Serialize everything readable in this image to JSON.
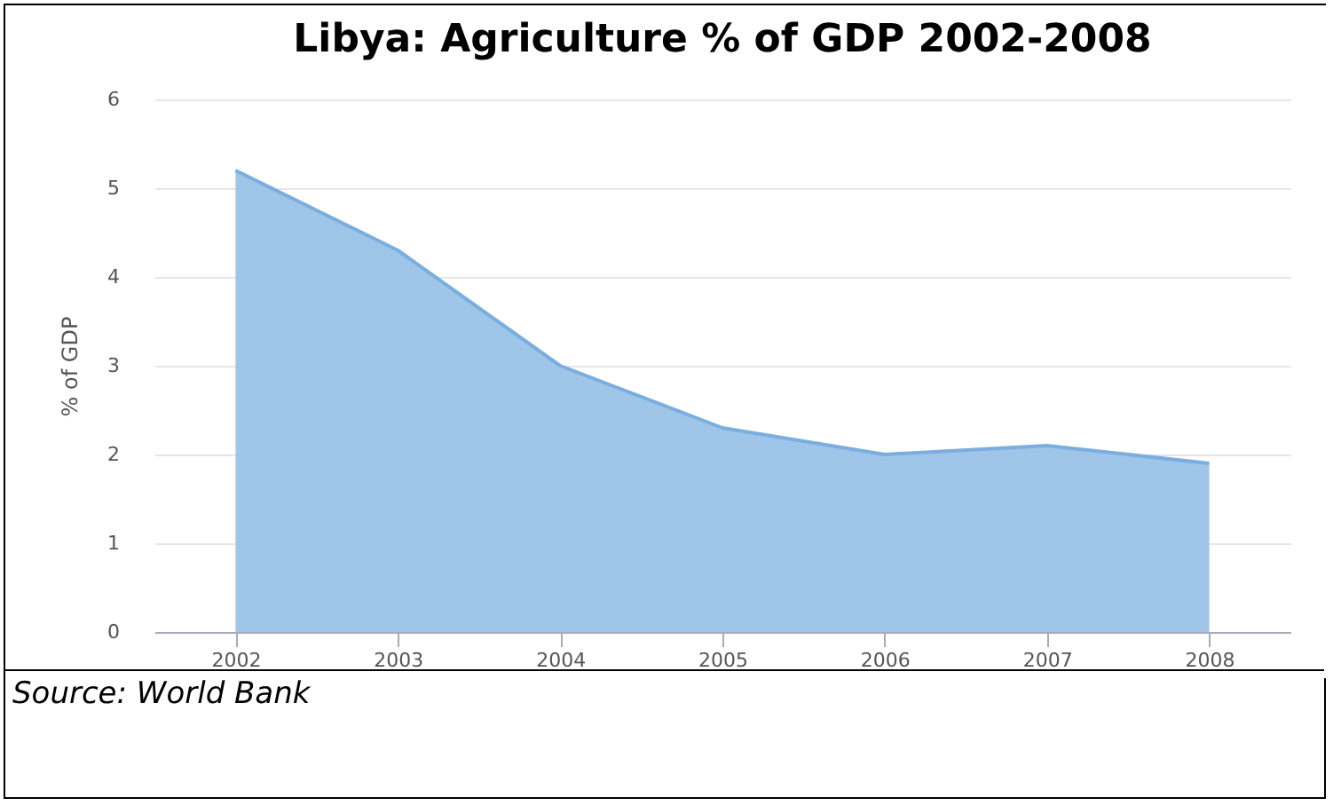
{
  "chart_data": {
    "type": "area",
    "title": "Libya: Agriculture  % of GDP 2002-2008",
    "ylabel": "% of GDP",
    "categories": [
      "2002",
      "2003",
      "2004",
      "2005",
      "2006",
      "2007",
      "2008"
    ],
    "values": [
      5.2,
      4.3,
      3.0,
      2.3,
      2.0,
      2.1,
      1.9
    ],
    "color": "#9fc5e8",
    "ylim": [
      0,
      6
    ],
    "yticks": [
      0,
      1,
      2,
      3,
      4,
      5,
      6
    ],
    "grid": "y",
    "annotations": [
      "Source: World Bank"
    ]
  }
}
